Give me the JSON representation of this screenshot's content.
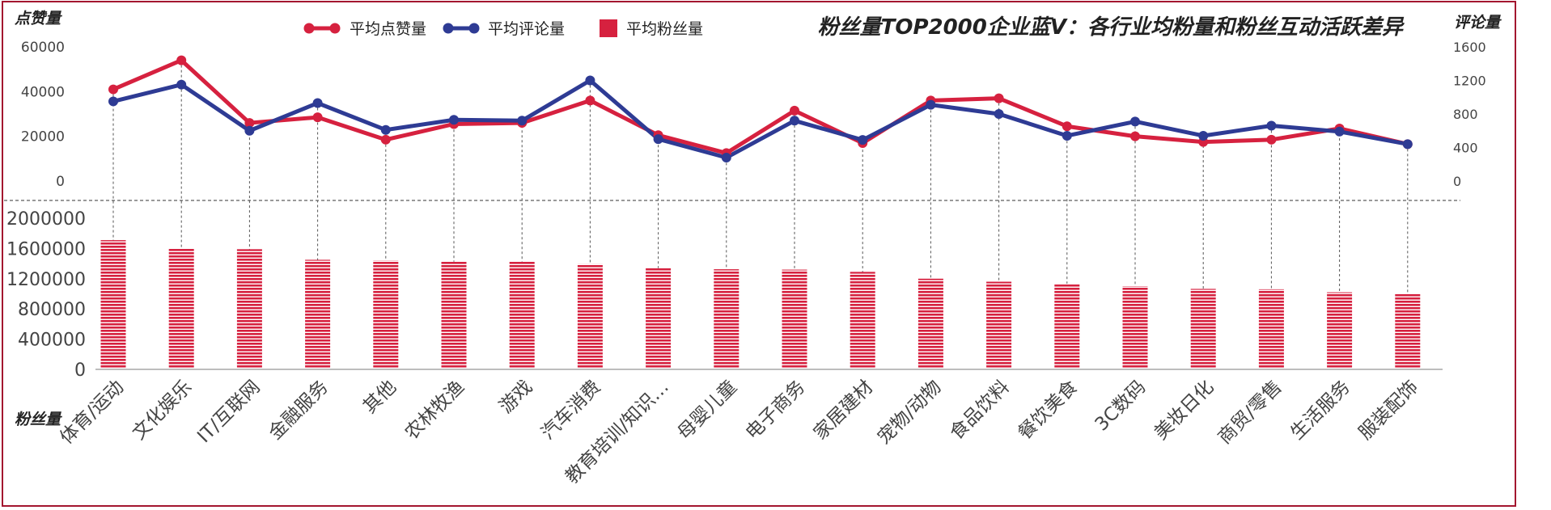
{
  "chart_data": {
    "type": "line+bar",
    "title": "粉丝量TOP2000企业蓝V：各行业均粉量和粉丝互动活跃差异",
    "categories": [
      "体育/运动",
      "文化娱乐",
      "IT/互联网",
      "金融服务",
      "其他",
      "农林牧渔",
      "游戏",
      "汽车消费",
      "教育培训/知识…",
      "母婴儿童",
      "电子商务",
      "家居建材",
      "宠物/动物",
      "食品饮料",
      "餐饮美食",
      "3C数码",
      "美妆日化",
      "商贸/零售",
      "生活服务",
      "服装配饰"
    ],
    "series": [
      {
        "name": "平均点赞量",
        "axis": "left-upper",
        "color": "#d6213f",
        "values": [
          41000,
          54000,
          26000,
          28500,
          18500,
          25500,
          26000,
          36000,
          20500,
          12500,
          31500,
          17000,
          36000,
          37000,
          24500,
          20000,
          17500,
          18500,
          23500,
          16500
        ]
      },
      {
        "name": "平均评论量",
        "axis": "right",
        "color": "#2e3b94",
        "values": [
          950,
          1150,
          600,
          930,
          610,
          730,
          720,
          1200,
          500,
          280,
          720,
          490,
          910,
          800,
          540,
          710,
          540,
          660,
          590,
          440
        ]
      },
      {
        "name": "平均粉丝量",
        "axis": "left-lower",
        "color": "#d6213f",
        "values": [
          1710000,
          1600000,
          1590000,
          1450000,
          1440000,
          1425000,
          1425000,
          1395000,
          1340000,
          1325000,
          1320000,
          1290000,
          1200000,
          1160000,
          1135000,
          1100000,
          1065000,
          1060000,
          1020000,
          995000
        ]
      }
    ],
    "axes": {
      "left_upper": {
        "label": "点赞量",
        "ticks": [
          "60000",
          "40000",
          "20000",
          "0"
        ],
        "range": [
          0,
          60000
        ]
      },
      "right": {
        "label": "评论量",
        "ticks": [
          "1600",
          "1200",
          "800",
          "400",
          "0"
        ],
        "range": [
          0,
          1600
        ]
      },
      "left_lower": {
        "label": "粉丝量",
        "ticks": [
          "2000000",
          "1600000",
          "1200000",
          "800000",
          "400000",
          "0"
        ],
        "range": [
          0,
          2000000
        ]
      }
    },
    "legend_placement": "top",
    "colors": {
      "like": "#d6213f",
      "comment": "#2e3b94",
      "fans": "#d6213f",
      "frame": "#a3162f"
    }
  }
}
